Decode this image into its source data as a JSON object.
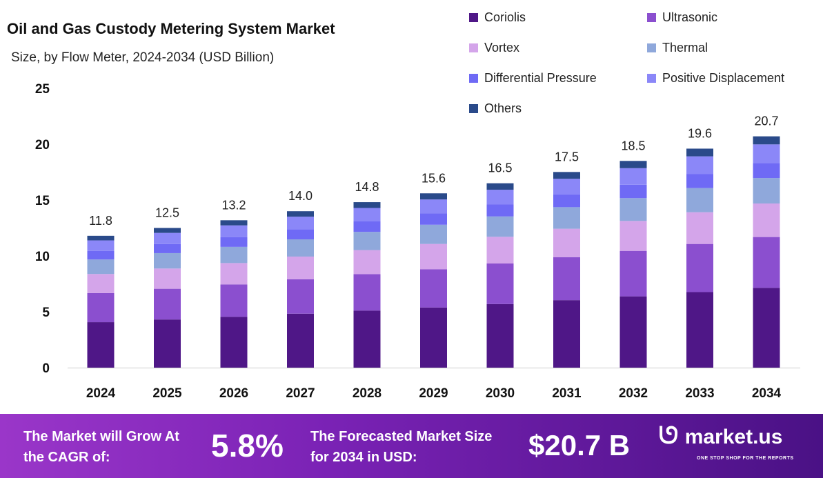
{
  "chart_data": {
    "type": "bar",
    "stacked": true,
    "title": "Oil and Gas Custody Metering System Market",
    "subtitle": "Size, by Flow Meter, 2024-2034 (USD Billion)",
    "categories": [
      "2024",
      "2025",
      "2026",
      "2027",
      "2028",
      "2029",
      "2030",
      "2031",
      "2032",
      "2033",
      "2034"
    ],
    "totals": [
      "11.8",
      "12.5",
      "13.2",
      "14.0",
      "14.8",
      "15.6",
      "16.5",
      "17.5",
      "18.5",
      "19.6",
      "20.7"
    ],
    "ylim": [
      0,
      25
    ],
    "yticks": [
      0,
      5,
      10,
      15,
      20,
      25
    ],
    "grid": false,
    "legend_position": "top-right",
    "series": [
      {
        "name": "Coriolis",
        "color": "#4f1787",
        "values": [
          4.07,
          4.31,
          4.55,
          4.83,
          5.11,
          5.38,
          5.69,
          6.04,
          6.38,
          6.76,
          7.14
        ]
      },
      {
        "name": "Ultrasonic",
        "color": "#8b4fcf",
        "values": [
          2.6,
          2.75,
          2.9,
          3.08,
          3.26,
          3.43,
          3.63,
          3.85,
          4.07,
          4.31,
          4.55
        ]
      },
      {
        "name": "Vortex",
        "color": "#d4a5ea",
        "values": [
          1.71,
          1.81,
          1.91,
          2.03,
          2.15,
          2.26,
          2.39,
          2.54,
          2.68,
          2.84,
          3.0
        ]
      },
      {
        "name": "Thermal",
        "color": "#8fa8db",
        "values": [
          1.3,
          1.38,
          1.45,
          1.54,
          1.63,
          1.72,
          1.82,
          1.93,
          2.04,
          2.16,
          2.28
        ]
      },
      {
        "name": "Differential Pressure",
        "color": "#6f6af5",
        "values": [
          0.77,
          0.81,
          0.86,
          0.91,
          0.96,
          1.01,
          1.07,
          1.14,
          1.2,
          1.27,
          1.35
        ]
      },
      {
        "name": "Positive Displacement",
        "color": "#8b87f8",
        "values": [
          0.94,
          1.0,
          1.06,
          1.12,
          1.18,
          1.25,
          1.32,
          1.4,
          1.48,
          1.57,
          1.66
        ]
      },
      {
        "name": "Others",
        "color": "#2a4a8a",
        "values": [
          0.41,
          0.44,
          0.46,
          0.49,
          0.52,
          0.55,
          0.58,
          0.61,
          0.65,
          0.69,
          0.72
        ]
      }
    ]
  },
  "footer": {
    "cagr_label": "The Market will Grow At the CAGR of:",
    "cagr_value": "5.8%",
    "forecast_label": "The Forecasted Market Size for 2034 in USD:",
    "forecast_value": "$20.7 B",
    "brand": "market.us",
    "tagline": "ONE STOP SHOP FOR THE REPORTS"
  }
}
